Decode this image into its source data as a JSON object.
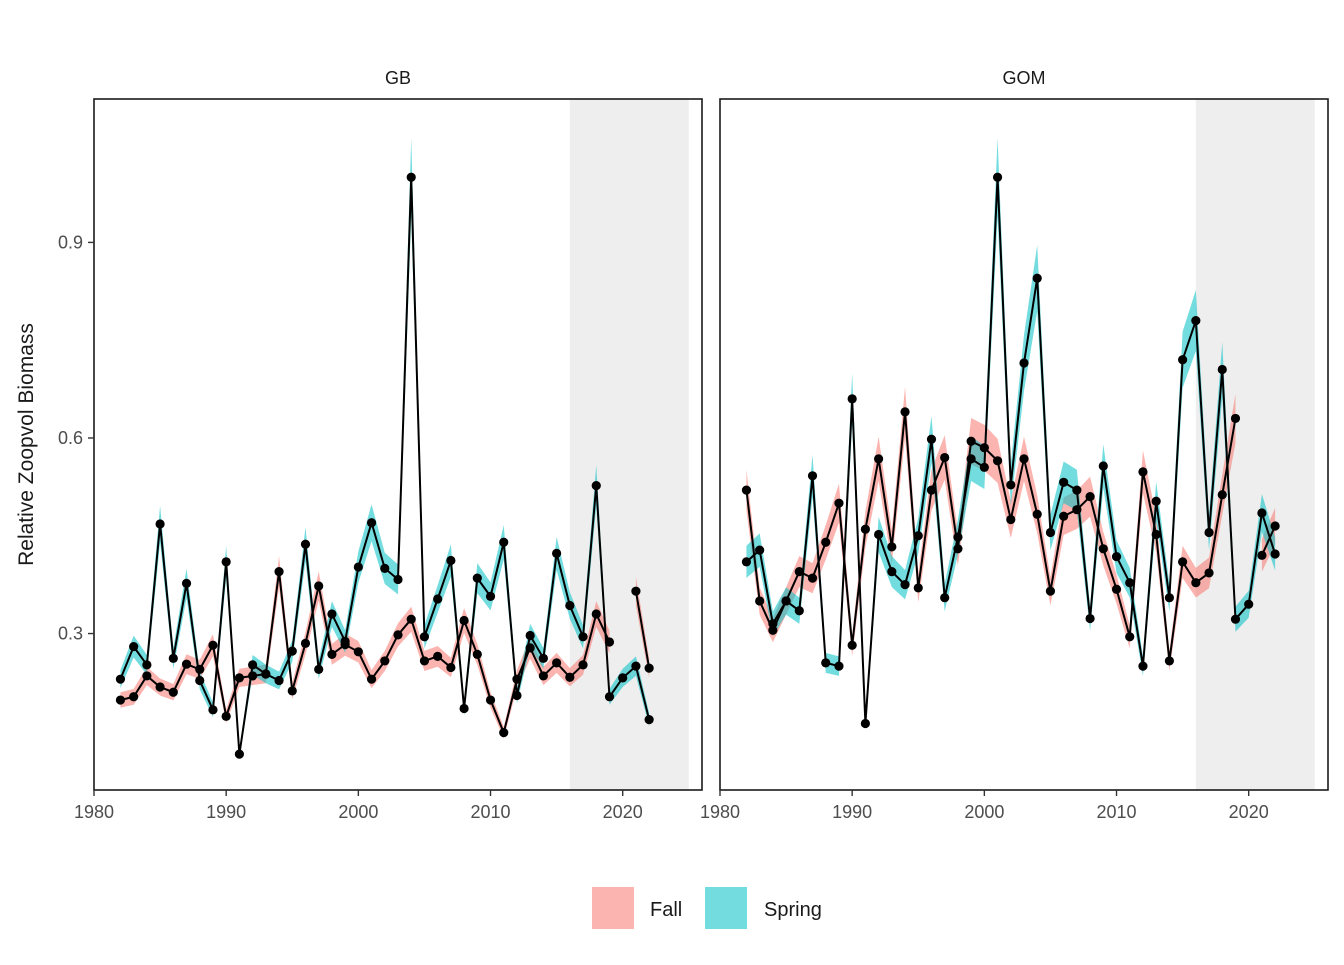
{
  "chart_data": {
    "type": "line",
    "ylabel": "Relative Zoopvol Biomass",
    "xlabel": "",
    "xlim": [
      1980,
      2026
    ],
    "ylim": [
      0.06,
      1.12
    ],
    "x_ticks": [
      1980,
      1990,
      2000,
      2010,
      2020
    ],
    "y_ticks": [
      0.3,
      0.6,
      0.9
    ],
    "y_tick_labels": [
      "0.3",
      "0.6",
      "0.9"
    ],
    "shaded_period": [
      2016,
      2025
    ],
    "grid": false,
    "legend_position": "bottom",
    "legend": [
      {
        "name": "Fall",
        "color": "#F8766D"
      },
      {
        "name": "Spring",
        "color": "#00BFC4"
      }
    ],
    "colors": {
      "fall_band": "#F8766D",
      "spring_band": "#00BFC4",
      "line": "#000000",
      "shade": "#EEEEEE"
    },
    "panels": [
      {
        "title": "GB",
        "series": [
          {
            "name": "Fall",
            "x": [
              1982,
              1983,
              1984,
              1985,
              1986,
              1987,
              1988,
              1989,
              1990,
              1991,
              1992,
              1993,
              1994,
              1995,
              1996,
              1997,
              1998,
              1999,
              2000,
              2001,
              2002,
              2003,
              2004,
              2005,
              2006,
              2007,
              2008,
              2009,
              2010,
              2011,
              2012,
              2013,
              2014,
              2015,
              2016,
              2017,
              2018,
              2019,
              null,
              2021,
              2022
            ],
            "y": [
              0.198,
              0.203,
              0.235,
              0.218,
              0.21,
              0.253,
              0.245,
              0.282,
              0.173,
              0.232,
              0.235,
              0.238,
              0.395,
              0.212,
              0.285,
              0.373,
              0.268,
              0.283,
              0.272,
              0.23,
              0.258,
              0.298,
              0.322,
              0.258,
              0.265,
              0.248,
              0.32,
              0.268,
              0.198,
              0.148,
              0.23,
              0.278,
              0.235,
              0.255,
              0.233,
              0.252,
              0.33,
              0.287,
              null,
              0.365,
              0.247
            ]
          },
          {
            "name": "Spring",
            "x": [
              1982,
              1983,
              1984,
              1985,
              1986,
              1987,
              1988,
              1989,
              1990,
              1991,
              1992,
              1993,
              1994,
              1995,
              1996,
              1997,
              1998,
              1999,
              2000,
              2001,
              2002,
              2003,
              2004,
              2005,
              2006,
              2007,
              2008,
              2009,
              2010,
              2011,
              2012,
              2013,
              2014,
              2015,
              2016,
              2017,
              2018,
              2019,
              2020,
              2021,
              2022
            ],
            "y": [
              0.23,
              0.28,
              0.252,
              0.468,
              0.262,
              0.377,
              0.228,
              0.183,
              0.41,
              0.115,
              0.252,
              0.238,
              0.228,
              0.273,
              0.437,
              0.245,
              0.33,
              0.288,
              0.402,
              0.47,
              0.4,
              0.383,
              1.0,
              0.295,
              0.353,
              0.412,
              0.185,
              0.385,
              0.357,
              0.44,
              0.205,
              0.297,
              0.262,
              0.423,
              0.343,
              0.295,
              0.527,
              0.203,
              0.232,
              0.25,
              0.168
            ]
          }
        ]
      },
      {
        "title": "GOM",
        "series": [
          {
            "name": "Fall",
            "x": [
              1982,
              1983,
              1984,
              1985,
              1986,
              1987,
              1988,
              1989,
              1990,
              1991,
              1992,
              1993,
              1994,
              1995,
              1996,
              1997,
              1998,
              1999,
              2000,
              2001,
              2002,
              2003,
              2004,
              2005,
              2006,
              2007,
              2008,
              2009,
              2010,
              2011,
              2012,
              2013,
              2014,
              2015,
              2016,
              2017,
              2018,
              2019,
              null,
              2021,
              2022
            ],
            "y": [
              0.52,
              0.35,
              0.305,
              0.35,
              0.395,
              0.385,
              0.44,
              0.5,
              0.282,
              0.46,
              0.568,
              0.433,
              0.64,
              0.37,
              0.52,
              0.57,
              0.43,
              0.595,
              0.585,
              0.565,
              0.475,
              0.568,
              0.483,
              0.365,
              0.48,
              0.49,
              0.51,
              0.43,
              0.368,
              0.295,
              0.548,
              0.452,
              0.258,
              0.41,
              0.378,
              0.393,
              0.513,
              0.63,
              null,
              0.42,
              0.465
            ]
          },
          {
            "name": "Spring",
            "x": [
              1982,
              1983,
              1984,
              1985,
              1986,
              1987,
              1988,
              1989,
              1990,
              1991,
              1992,
              1993,
              1994,
              1995,
              1996,
              1997,
              1998,
              1999,
              2000,
              2001,
              2002,
              2003,
              2004,
              2005,
              2006,
              2007,
              2008,
              2009,
              2010,
              2011,
              2012,
              2013,
              2014,
              2015,
              2016,
              2017,
              2018,
              2019,
              2020,
              2021,
              2022
            ],
            "y": [
              0.41,
              0.428,
              0.315,
              0.35,
              0.335,
              0.542,
              0.255,
              0.25,
              0.66,
              0.162,
              0.452,
              0.395,
              0.375,
              0.45,
              0.598,
              0.355,
              0.448,
              0.568,
              0.555,
              1.0,
              0.528,
              0.715,
              0.845,
              0.455,
              0.532,
              0.52,
              0.323,
              0.557,
              0.418,
              0.378,
              0.25,
              0.503,
              0.355,
              0.72,
              0.78,
              0.455,
              0.705,
              0.322,
              0.345,
              0.485,
              0.422
            ]
          }
        ]
      }
    ]
  }
}
